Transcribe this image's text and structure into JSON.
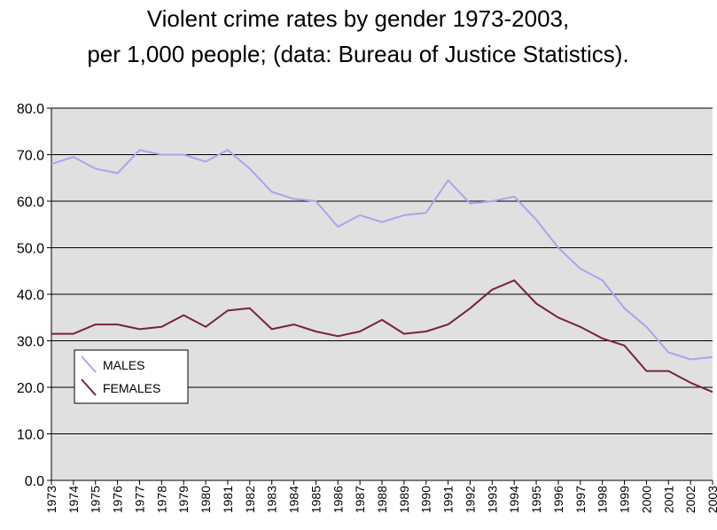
{
  "chart_data": {
    "type": "line",
    "title": "Violent crime rates by gender 1973-2003,",
    "subtitle": "per 1,000 people; (data: Bureau of Justice Statistics).",
    "xlabel": "",
    "ylabel": "",
    "x": [
      "1973",
      "1974",
      "1975",
      "1976",
      "1977",
      "1978",
      "1979",
      "1980",
      "1981",
      "1982",
      "1983",
      "1984",
      "1985",
      "1986",
      "1987",
      "1988",
      "1989",
      "1990",
      "1991",
      "1992",
      "1993",
      "1994",
      "1995",
      "1996",
      "1997",
      "1998",
      "1999",
      "2000",
      "2001",
      "2002",
      "2003"
    ],
    "yticks": [
      "0.0",
      "10.0",
      "20.0",
      "30.0",
      "40.0",
      "50.0",
      "60.0",
      "70.0",
      "80.0"
    ],
    "ylim": [
      0,
      80
    ],
    "grid": true,
    "legend_position": "left",
    "plot_background": "#e0e0e0",
    "series": [
      {
        "name": "MALES",
        "color": "#a6a6ee",
        "values": [
          68,
          69.5,
          67,
          66,
          71,
          70,
          70,
          68.5,
          71,
          67,
          62,
          60.5,
          60,
          54.5,
          57,
          55.5,
          57,
          57.5,
          64.5,
          59.5,
          60,
          61,
          56,
          50,
          45.5,
          43,
          37,
          33,
          27.5,
          26,
          26.5
        ]
      },
      {
        "name": "FEMALES",
        "color": "#7a1e48",
        "values": [
          31.5,
          31.5,
          33.5,
          33.5,
          32.5,
          33,
          35.5,
          33,
          36.5,
          37,
          32.5,
          33.5,
          32,
          31,
          32,
          34.5,
          31.5,
          32,
          33.5,
          37,
          41,
          43,
          38,
          35,
          33,
          30.5,
          29,
          23.5,
          23.5,
          21,
          19
        ]
      }
    ]
  }
}
